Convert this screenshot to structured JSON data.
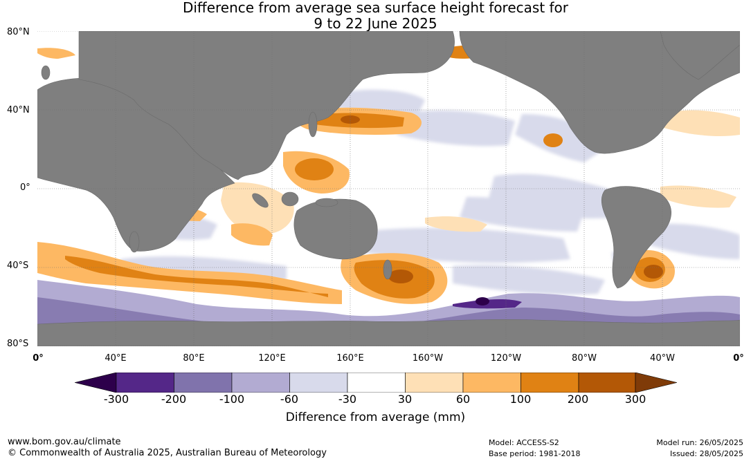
{
  "title": {
    "line1": "Difference from average sea surface height forecast for",
    "line2": "9 to 22 June 2025"
  },
  "map": {
    "lat_labels": [
      "80°N",
      "40°N",
      "0°",
      "40°S",
      "80°S"
    ],
    "lon_labels": [
      "0°",
      "40°E",
      "80°E",
      "120°E",
      "160°E",
      "160°W",
      "120°W",
      "80°W",
      "40°W",
      "0°"
    ],
    "colors": {
      "land": "#7f7f7f",
      "grid": "#6e6e6e"
    }
  },
  "colorbar": {
    "ticks": [
      "-300",
      "-200",
      "-100",
      "-60",
      "-30",
      "30",
      "60",
      "100",
      "200",
      "300"
    ],
    "colors": [
      "#2d004b",
      "#542788",
      "#8073ac",
      "#b2abd2",
      "#d8daeb",
      "#ffffff",
      "#fee0b6",
      "#fdb863",
      "#e08214",
      "#b35806",
      "#7f3b08"
    ],
    "label": "Difference from average (mm)"
  },
  "footer": {
    "website": "www.bom.gov.au/climate",
    "copyright": "© Commonwealth of Australia 2025, Australian Bureau of Meteorology",
    "model": "Model: ACCESS-S2",
    "base_period": "Base period: 1981-2018",
    "model_run": "Model run: 26/05/2025",
    "issued": "Issued: 28/05/2025"
  }
}
